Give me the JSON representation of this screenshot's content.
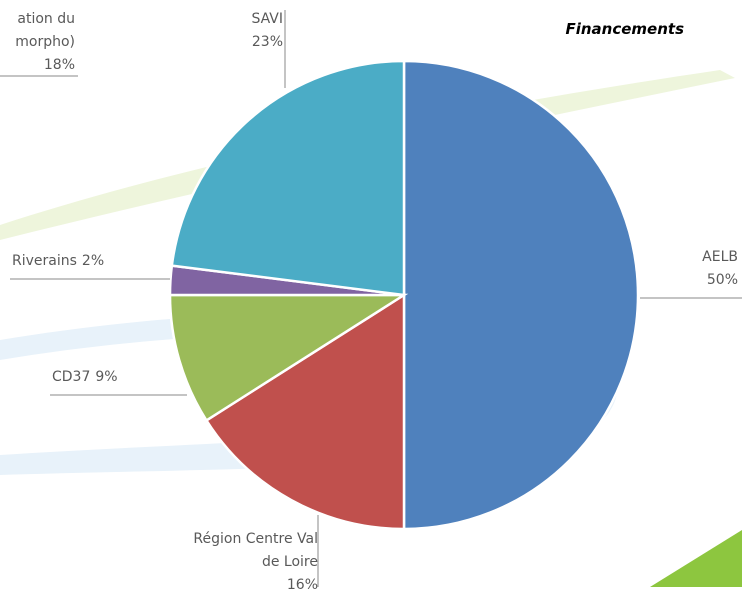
{
  "chart_data": {
    "type": "pie",
    "title": "Financements",
    "categories": [
      "AELB",
      "Région Centre Val de Loire",
      "CD37",
      "Riverains",
      "SAVI"
    ],
    "values": [
      50,
      16,
      9,
      2,
      23
    ],
    "value_labels": [
      "50%",
      "16%",
      "9%",
      "2%",
      "23%"
    ],
    "colors": [
      "#4f81bd",
      "#c0504d",
      "#9bbb59",
      "#8064a2",
      "#4bacc6"
    ],
    "annotations": [
      "ation du",
      "morpho)",
      "18%"
    ]
  }
}
